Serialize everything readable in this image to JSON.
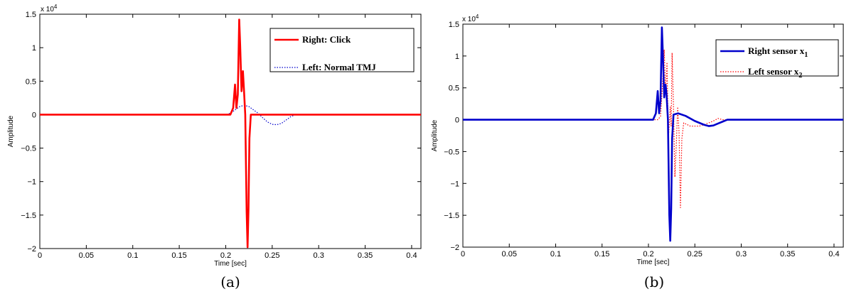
{
  "chart_data": [
    {
      "type": "line",
      "caption": "(a)",
      "xlabel": "Time [sec]",
      "ylabel": "Amplitude",
      "y_multiplier": "x 10",
      "y_multiplier_exp": "4",
      "xlim": [
        0,
        0.41
      ],
      "ylim": [
        -2,
        1.5
      ],
      "y_scale_note": "values in units of 1e4",
      "xticks": [
        0,
        0.05,
        0.1,
        0.15,
        0.2,
        0.25,
        0.3,
        0.35,
        0.4
      ],
      "xtick_labels": [
        "0",
        "0.05",
        "0.1",
        "0.15",
        "0.2",
        "0.25",
        "0.3",
        "0.35",
        "0.4"
      ],
      "yticks": [
        -2,
        -1.5,
        -1,
        -0.5,
        0,
        0.5,
        1,
        1.5
      ],
      "ytick_labels": [
        "−2",
        "−1.5",
        "−1",
        "−0.5",
        "0",
        "0.5",
        "1",
        "1.5"
      ],
      "legend_position": "top-right",
      "series": [
        {
          "name": "Right: Click",
          "color": "#ff0000",
          "style": "solid",
          "points": [
            [
              0,
              0
            ],
            [
              0.205,
              0
            ],
            [
              0.208,
              0.1
            ],
            [
              0.21,
              0.45
            ],
            [
              0.2115,
              0.1
            ],
            [
              0.213,
              0.3
            ],
            [
              0.2145,
              1.42
            ],
            [
              0.2155,
              1.05
            ],
            [
              0.217,
              0.35
            ],
            [
              0.2185,
              0.65
            ],
            [
              0.2195,
              0.4
            ],
            [
              0.221,
              0
            ],
            [
              0.2225,
              -1.45
            ],
            [
              0.2235,
              -1.98
            ],
            [
              0.2245,
              -1.4
            ],
            [
              0.2255,
              -0.35
            ],
            [
              0.227,
              0
            ],
            [
              0.41,
              0
            ]
          ]
        },
        {
          "name": "Left: Normal TMJ",
          "color": "#0000cc",
          "style": "dotted",
          "points": [
            [
              0,
              0
            ],
            [
              0.2,
              0
            ],
            [
              0.205,
              0.02
            ],
            [
              0.21,
              0.07
            ],
            [
              0.215,
              0.12
            ],
            [
              0.22,
              0.14
            ],
            [
              0.225,
              0.12
            ],
            [
              0.23,
              0.07
            ],
            [
              0.235,
              0.02
            ],
            [
              0.24,
              -0.05
            ],
            [
              0.245,
              -0.11
            ],
            [
              0.25,
              -0.145
            ],
            [
              0.255,
              -0.15
            ],
            [
              0.26,
              -0.13
            ],
            [
              0.265,
              -0.08
            ],
            [
              0.27,
              -0.03
            ],
            [
              0.275,
              0
            ],
            [
              0.41,
              0
            ]
          ]
        }
      ]
    },
    {
      "type": "line",
      "caption": "(b)",
      "xlabel": "Time [sec]",
      "ylabel": "Amplitude",
      "y_multiplier": "x 10",
      "y_multiplier_exp": "4",
      "xlim": [
        0,
        0.41
      ],
      "ylim": [
        -2,
        1.5
      ],
      "y_scale_note": "values in units of 1e4",
      "xticks": [
        0,
        0.05,
        0.1,
        0.15,
        0.2,
        0.25,
        0.3,
        0.35,
        0.4
      ],
      "xtick_labels": [
        "0",
        "0.05",
        "0.1",
        "0.15",
        "0.2",
        "0.25",
        "0.3",
        "0.35",
        "0.4"
      ],
      "yticks": [
        -2,
        -1.5,
        -1,
        -0.5,
        0,
        0.5,
        1,
        1.5
      ],
      "ytick_labels": [
        "−2",
        "−1.5",
        "−1",
        "−0.5",
        "0",
        "0.5",
        "1",
        "1.5"
      ],
      "legend_position": "top-right",
      "series": [
        {
          "name": "Right sensor x",
          "name_subscript": "1",
          "color": "#0000cc",
          "style": "solid",
          "points": [
            [
              0,
              0
            ],
            [
              0.205,
              0
            ],
            [
              0.208,
              0.1
            ],
            [
              0.21,
              0.45
            ],
            [
              0.2115,
              0.1
            ],
            [
              0.213,
              0.3
            ],
            [
              0.2145,
              1.45
            ],
            [
              0.2155,
              1.05
            ],
            [
              0.217,
              0.35
            ],
            [
              0.2185,
              0.55
            ],
            [
              0.2195,
              0.4
            ],
            [
              0.221,
              0
            ],
            [
              0.2225,
              -1.5
            ],
            [
              0.2235,
              -1.9
            ],
            [
              0.2245,
              -1.4
            ],
            [
              0.2255,
              -0.3
            ],
            [
              0.227,
              0.08
            ],
            [
              0.232,
              0.1
            ],
            [
              0.24,
              0.06
            ],
            [
              0.25,
              -0.02
            ],
            [
              0.26,
              -0.08
            ],
            [
              0.265,
              -0.1
            ],
            [
              0.27,
              -0.09
            ],
            [
              0.275,
              -0.06
            ],
            [
              0.28,
              -0.03
            ],
            [
              0.285,
              0
            ],
            [
              0.41,
              0
            ]
          ]
        },
        {
          "name": "Left sensor x",
          "name_subscript": "2",
          "color": "#ff0000",
          "style": "dotted",
          "points": [
            [
              0,
              0
            ],
            [
              0.21,
              0
            ],
            [
              0.213,
              0.05
            ],
            [
              0.215,
              0.5
            ],
            [
              0.217,
              1.1
            ],
            [
              0.2185,
              0.4
            ],
            [
              0.22,
              0.9
            ],
            [
              0.2215,
              -0.3
            ],
            [
              0.2235,
              0.2
            ],
            [
              0.2245,
              -0.1
            ],
            [
              0.2255,
              1.05
            ],
            [
              0.227,
              0.2
            ],
            [
              0.2285,
              -0.9
            ],
            [
              0.23,
              -0.4
            ],
            [
              0.2315,
              0.2
            ],
            [
              0.233,
              -0.2
            ],
            [
              0.2345,
              -1.38
            ],
            [
              0.236,
              -0.3
            ],
            [
              0.238,
              -0.05
            ],
            [
              0.245,
              -0.1
            ],
            [
              0.255,
              -0.1
            ],
            [
              0.265,
              -0.05
            ],
            [
              0.27,
              -0.02
            ],
            [
              0.275,
              0.02
            ],
            [
              0.28,
              0
            ],
            [
              0.41,
              0
            ]
          ]
        }
      ]
    }
  ]
}
